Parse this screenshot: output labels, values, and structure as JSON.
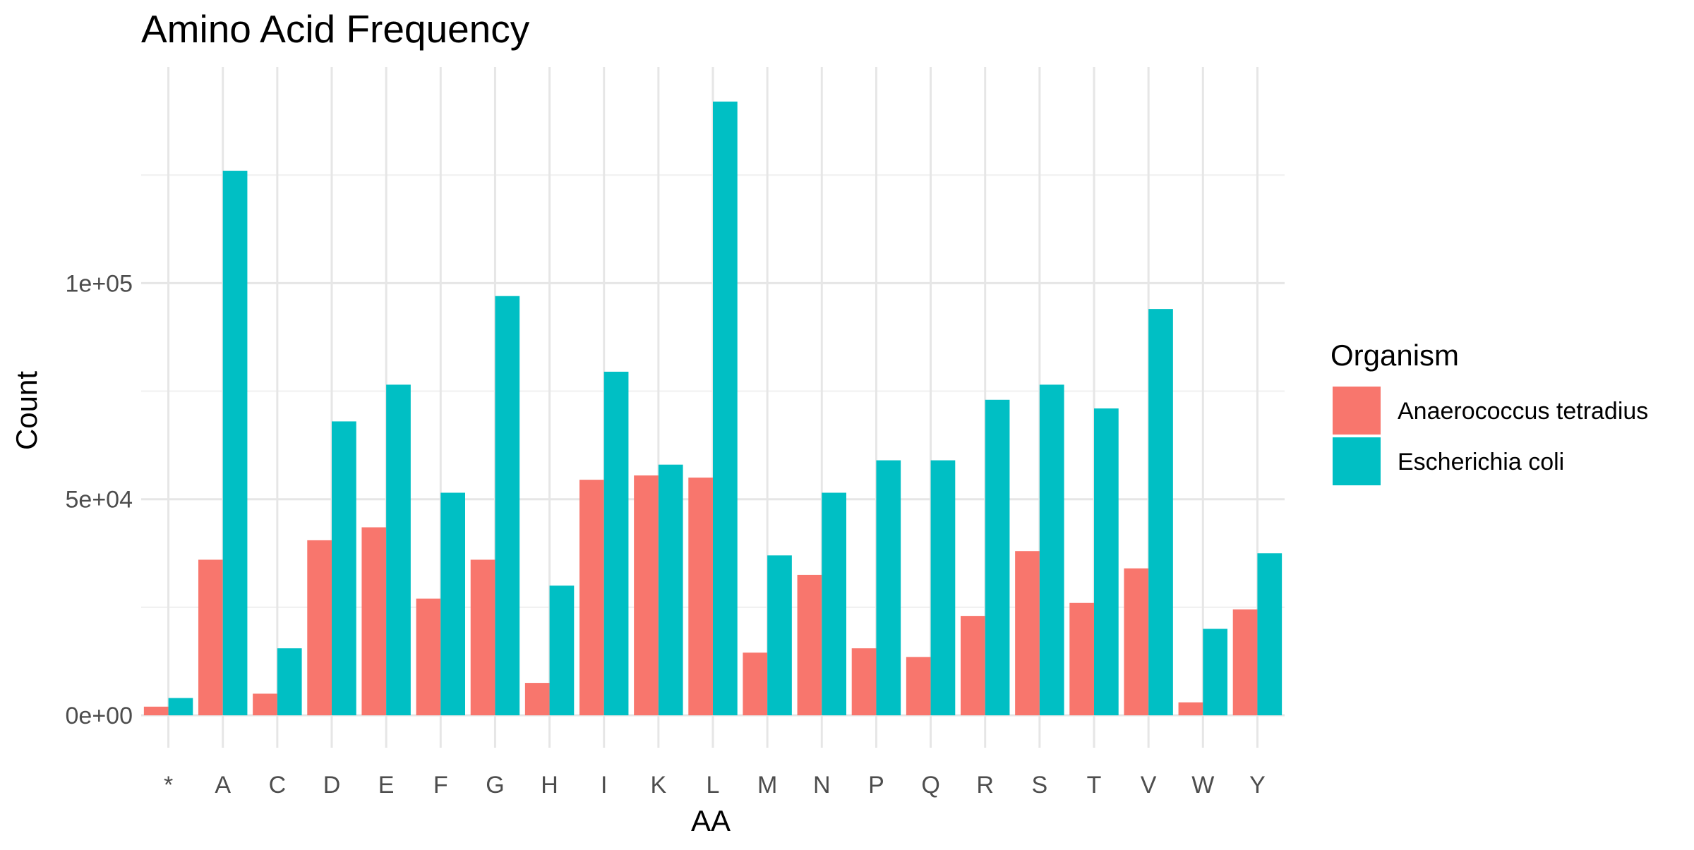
{
  "chart_data": {
    "type": "bar",
    "title": "Amino Acid Frequency",
    "xlabel": "AA",
    "ylabel": "Count",
    "categories": [
      "*",
      "A",
      "C",
      "D",
      "E",
      "F",
      "G",
      "H",
      "I",
      "K",
      "L",
      "M",
      "N",
      "P",
      "Q",
      "R",
      "S",
      "T",
      "V",
      "W",
      "Y"
    ],
    "series": [
      {
        "name": "Anaerococcus tetradius",
        "color": "#F8766D",
        "values": [
          2000,
          36000,
          5000,
          40500,
          43500,
          27000,
          36000,
          7500,
          54500,
          55500,
          55000,
          14500,
          32500,
          15500,
          13500,
          23000,
          38000,
          26000,
          34000,
          3000,
          24500
        ]
      },
      {
        "name": "Escherichia coli",
        "color": "#00BFC4",
        "values": [
          4000,
          126000,
          15500,
          68000,
          76500,
          51500,
          97000,
          30000,
          79500,
          58000,
          142000,
          37000,
          51500,
          59000,
          59000,
          73000,
          76500,
          71000,
          94000,
          20000,
          37500
        ]
      }
    ],
    "ylim": [
      -7500,
      150000
    ],
    "y_ticks": [
      0,
      50000,
      100000
    ],
    "y_tick_labels": [
      "0e+00",
      "5e+04",
      "1e+05"
    ],
    "grid": true,
    "legend": {
      "title": "Organism",
      "placement": "right"
    }
  }
}
